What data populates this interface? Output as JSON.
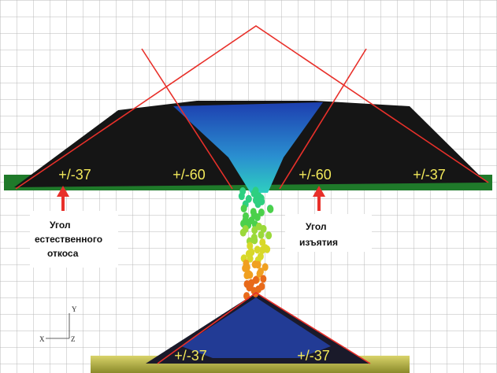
{
  "angles": {
    "top_left_outer": "+/-37",
    "top_left_inner": "+/-60",
    "top_right_inner": "+/-60",
    "top_right_outer": "+/-37",
    "bottom_left": "+/-37",
    "bottom_right": "+/-37"
  },
  "callouts": {
    "left": [
      "Угол",
      "естественного",
      "откоса"
    ],
    "right": [
      "Угол",
      "изъятия"
    ]
  },
  "axes": {
    "y": "Y",
    "x": "X",
    "z": "Z"
  }
}
